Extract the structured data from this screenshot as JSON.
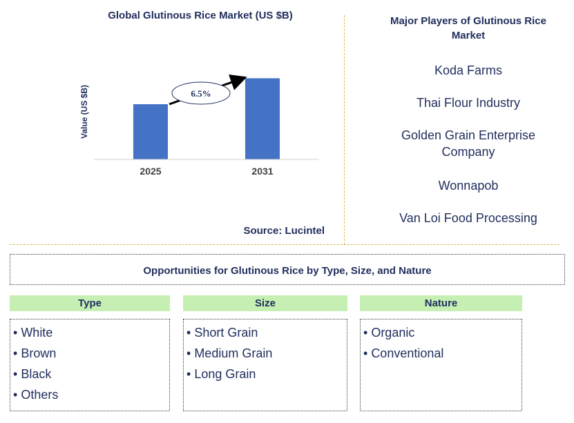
{
  "chart_data": {
    "type": "bar",
    "title": "Global Glutinous Rice Market (US $B)",
    "ylabel": "Value (US $B)",
    "xlabel": "",
    "categories": [
      "2025",
      "2031"
    ],
    "values": [
      1.0,
      1.47
    ],
    "ylim": [
      0,
      1.6
    ],
    "annotation": {
      "text": "6.5%",
      "type": "CAGR arrow from 2025 to 2031"
    },
    "bar_color": "#4472c4",
    "grid": false
  },
  "source": "Source: Lucintel",
  "players": {
    "title": "Major Players of Glutinous Rice Market",
    "items": [
      "Koda Farms",
      "Thai Flour Industry",
      "Golden Grain Enterprise Company",
      "Wonnapob",
      "Van Loi Food Processing"
    ]
  },
  "opportunities": {
    "title": "Opportunities for Glutinous Rice by Type, Size, and Nature",
    "categories": [
      {
        "header": "Type",
        "items": [
          "White",
          "Brown",
          "Black",
          "Others"
        ]
      },
      {
        "header": "Size",
        "items": [
          "Short Grain",
          "Medium Grain",
          "Long Grain"
        ]
      },
      {
        "header": "Nature",
        "items": [
          "Organic",
          "Conventional"
        ]
      }
    ]
  },
  "colors": {
    "text": "#1f2d5c",
    "bar": "#4472c4",
    "header_bg": "#c6efb3",
    "divider": "#d9b84a"
  }
}
